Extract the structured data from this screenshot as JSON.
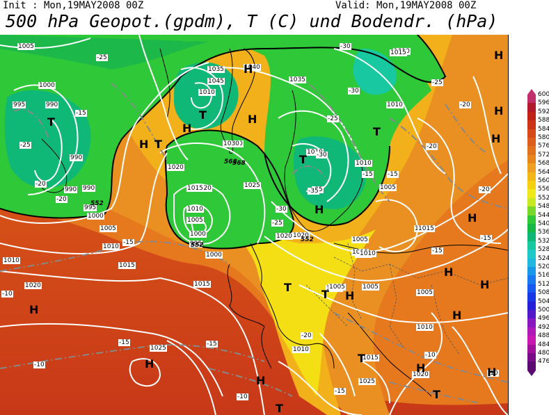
{
  "header": {
    "init": "Init : Mon,19MAY2008 00Z",
    "valid": "Valid: Mon,19MAY2008 00Z",
    "title": "500 hPa Geopot.(gpdm), T (C) und Bodendr. (hPa)"
  },
  "colorbar": {
    "levels": [
      600,
      596,
      592,
      588,
      584,
      580,
      576,
      572,
      568,
      564,
      560,
      556,
      552,
      548,
      544,
      540,
      536,
      532,
      528,
      524,
      520,
      516,
      512,
      508,
      504,
      500,
      496,
      492,
      488,
      484,
      480,
      476
    ],
    "colors": [
      "#c0306a",
      "#b01a2a",
      "#c02218",
      "#cc3418",
      "#d64a1a",
      "#dc5e1c",
      "#e2721c",
      "#e8861e",
      "#eea020",
      "#f2b818",
      "#f4d010",
      "#f0e818",
      "#c8e820",
      "#7ad82a",
      "#2ec838",
      "#16b848",
      "#10b878",
      "#18c8a0",
      "#20c8c8",
      "#20b8e0",
      "#1a98e8",
      "#1878f0",
      "#1858f0",
      "#1838e8",
      "#2420d8",
      "#5418c8",
      "#8818c0",
      "#b018b8",
      "#c818b0",
      "#a0109a",
      "#7a0c88",
      "#5a0a70"
    ]
  },
  "map": {
    "pressure_labels": [
      "1005",
      "1000",
      "995",
      "990",
      "990",
      "990",
      "995",
      "1000",
      "1005",
      "1010",
      "1015",
      "1020",
      "1025",
      "1035",
      "1040",
      "1045",
      "1020",
      "1025",
      "1030",
      "1035",
      "1020",
      "1015",
      "1010",
      "1005",
      "1000",
      "995",
      "990",
      "1015",
      "1020",
      "1025",
      "1010",
      "1005",
      "1030",
      "1005",
      "1010",
      "1010",
      "1015",
      "1010",
      "1005",
      "1005",
      "1010",
      "1015",
      "1020",
      "1025",
      "1010",
      "1005",
      "1010",
      "1010",
      "1015",
      "1020",
      "1000",
      "1005",
      "1010",
      "1015",
      "1010"
    ],
    "temp_labels": [
      "-25",
      "-25",
      "-15",
      "-20",
      "-20",
      "-25",
      "-30",
      "-35",
      "-30",
      "-30",
      "-25",
      "-35",
      "-30",
      "-25",
      "-20",
      "-15",
      "-15",
      "-10",
      "-15",
      "-10",
      "-15",
      "-20",
      "-15",
      "-20",
      "-15",
      "-20",
      "-15",
      "-10",
      "-15",
      "-10",
      "-10",
      "-15"
    ],
    "highs": [
      "H",
      "H",
      "H",
      "H",
      "H",
      "H",
      "H",
      "H",
      "H",
      "H",
      "H",
      "H",
      "H",
      "H",
      "H",
      "H",
      "H",
      "H"
    ],
    "lows": [
      "T",
      "T",
      "T",
      "T",
      "T",
      "T",
      "T",
      "T",
      "T",
      "T"
    ],
    "height_labels": [
      "552",
      "568",
      "568",
      "552",
      "552"
    ]
  }
}
